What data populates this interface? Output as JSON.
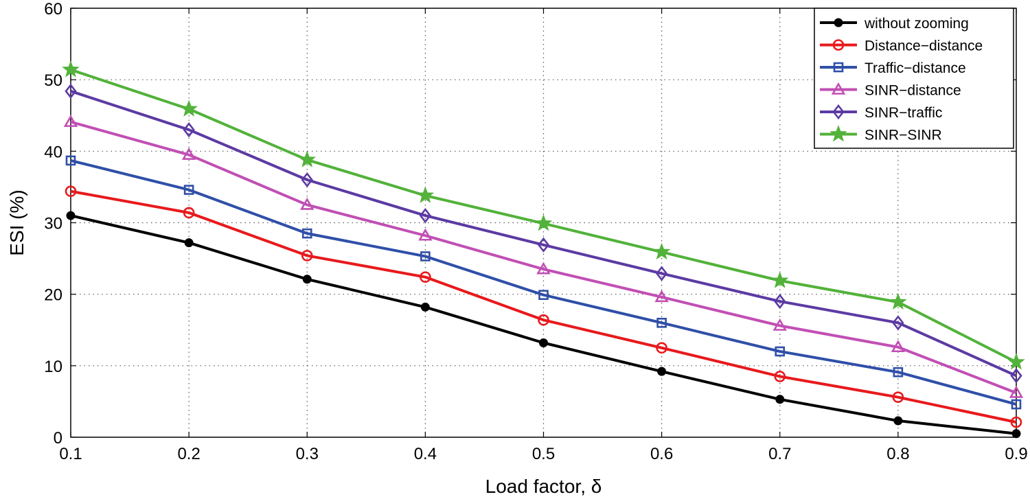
{
  "chart_data": {
    "type": "line",
    "title": "",
    "xlabel": "Load factor, δ",
    "ylabel": "ESI (%)",
    "xlim": [
      0.1,
      0.9
    ],
    "ylim": [
      0,
      60
    ],
    "grid": true,
    "legend_position": "top-right",
    "x": [
      0.1,
      0.2,
      0.3,
      0.4,
      0.5,
      0.6,
      0.7,
      0.8,
      0.9
    ],
    "x_ticks": [
      "0.1",
      "0.2",
      "0.3",
      "0.4",
      "0.5",
      "0.6",
      "0.7",
      "0.8",
      "0.9"
    ],
    "y_ticks": [
      "0",
      "10",
      "20",
      "30",
      "40",
      "50",
      "60"
    ],
    "series": [
      {
        "name": "without zooming",
        "color": "#000000",
        "marker": "filled-circle",
        "values": [
          31,
          27.2,
          22.1,
          18.2,
          13.2,
          9.2,
          5.3,
          2.3,
          0.5
        ]
      },
      {
        "name": "Distance−distance",
        "color": "#e8191c",
        "marker": "circle",
        "values": [
          34.4,
          31.4,
          25.4,
          22.4,
          16.4,
          12.5,
          8.5,
          5.6,
          2.1
        ]
      },
      {
        "name": "Traffic−distance",
        "color": "#2f4fa8",
        "marker": "square",
        "values": [
          38.7,
          34.6,
          28.5,
          25.3,
          19.9,
          16,
          12,
          9.1,
          4.6
        ]
      },
      {
        "name": "SINR−distance",
        "color": "#c14fb4",
        "marker": "triangle",
        "values": [
          44.1,
          39.5,
          32.5,
          28.2,
          23.5,
          19.6,
          15.6,
          12.6,
          6.2
        ]
      },
      {
        "name": "SINR−traffic",
        "color": "#5c3aa3",
        "marker": "diamond",
        "values": [
          48.4,
          43,
          36,
          31,
          26.9,
          22.9,
          19,
          16,
          8.6
        ]
      },
      {
        "name": "SINR−SINR",
        "color": "#52b23a",
        "marker": "star",
        "values": [
          51.4,
          45.9,
          38.8,
          33.8,
          29.9,
          25.9,
          21.9,
          18.9,
          10.5
        ]
      }
    ]
  }
}
